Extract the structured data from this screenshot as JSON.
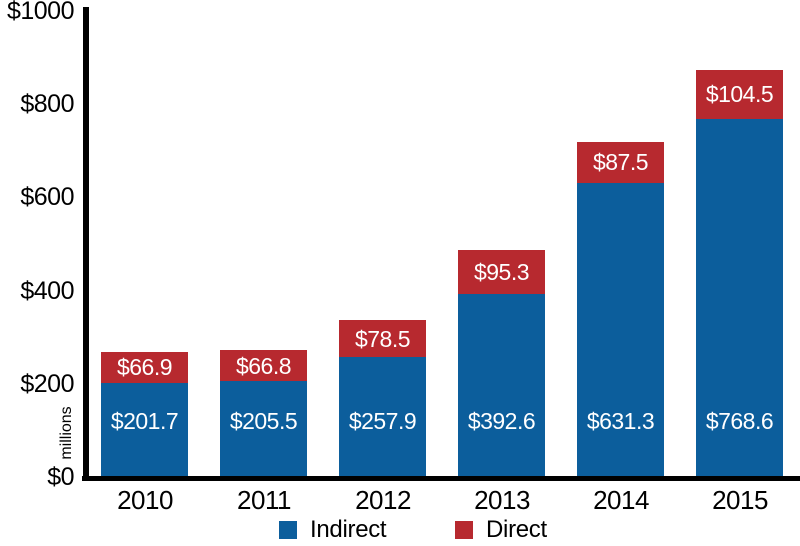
{
  "chart_data": {
    "type": "bar",
    "stacked": true,
    "title": "",
    "ylabel": "millions",
    "ylim": [
      0,
      1000
    ],
    "grid": false,
    "legend_position": "bottom",
    "y_ticks": [
      {
        "value": 0,
        "label": "$0"
      },
      {
        "value": 200,
        "label": "$200"
      },
      {
        "value": 400,
        "label": "$400"
      },
      {
        "value": 600,
        "label": "$600"
      },
      {
        "value": 800,
        "label": "$800"
      },
      {
        "value": 1000,
        "label": "$1000"
      }
    ],
    "categories": [
      "2010",
      "2011",
      "2012",
      "2013",
      "2014",
      "2015"
    ],
    "series": [
      {
        "name": "Indirect",
        "color": "#0c5e9c",
        "values": [
          201.7,
          205.5,
          257.9,
          392.6,
          631.3,
          768.6
        ],
        "labels": [
          "$201.7",
          "$205.5",
          "$257.9",
          "$392.6",
          "$631.3",
          "$768.6"
        ]
      },
      {
        "name": "Direct",
        "color": "#b7292f",
        "values": [
          66.9,
          66.8,
          78.5,
          95.3,
          87.5,
          104.5
        ],
        "labels": [
          "$66.9",
          "$66.8",
          "$78.5",
          "$95.3",
          "$87.5",
          "$104.5"
        ]
      }
    ],
    "colors": {
      "axis": "#000000",
      "bar_label_text": "#ffffff",
      "tick_text": "#000000"
    }
  }
}
